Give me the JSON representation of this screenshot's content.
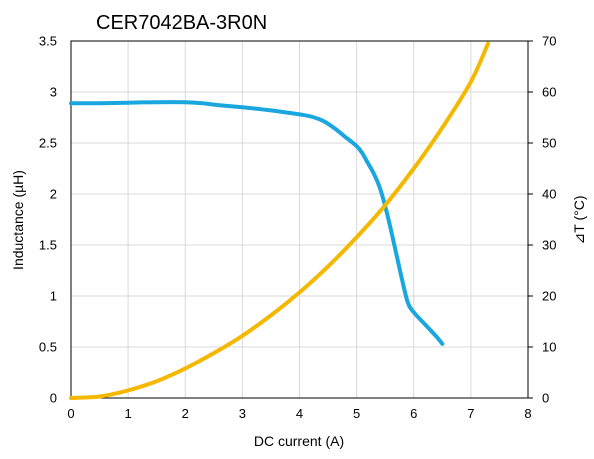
{
  "chart_data": {
    "type": "line",
    "title": "CER7042BA-3R0N",
    "xlabel": "DC current (A)",
    "ylabel_left": "Inductance (µH)",
    "ylabel_right": "⊿T (°C)",
    "xlim": [
      0,
      8
    ],
    "ylim_left": [
      0,
      3.5
    ],
    "ylim_right": [
      0,
      70
    ],
    "grid": true,
    "x_ticks": [
      "0",
      "1",
      "2",
      "3",
      "4",
      "5",
      "6",
      "7",
      "8"
    ],
    "y_left_ticks": [
      "0",
      "0.5",
      "1",
      "1.5",
      "2",
      "2.5",
      "3",
      "3.5"
    ],
    "y_right_ticks": [
      "0",
      "10",
      "20",
      "30",
      "40",
      "50",
      "60",
      "70"
    ],
    "series": [
      {
        "axis": "left",
        "color": "#1aa7e0",
        "x": [
          0,
          0.5,
          1,
          1.5,
          2,
          2.3,
          2.6,
          3,
          3.5,
          4,
          4.2,
          4.4,
          4.6,
          4.8,
          5.0,
          5.1,
          5.2,
          5.3,
          5.4,
          5.5,
          5.6,
          5.7,
          5.8,
          5.9,
          6.0,
          6.2,
          6.4,
          6.5
        ],
        "y": [
          2.89,
          2.89,
          2.895,
          2.9,
          2.9,
          2.89,
          2.87,
          2.85,
          2.82,
          2.78,
          2.76,
          2.72,
          2.65,
          2.56,
          2.47,
          2.4,
          2.3,
          2.2,
          2.07,
          1.88,
          1.65,
          1.4,
          1.15,
          0.93,
          0.84,
          0.72,
          0.6,
          0.53
        ]
      },
      {
        "axis": "right",
        "color": "#f5b800",
        "x": [
          0,
          0.5,
          1,
          1.5,
          2,
          2.5,
          3,
          3.5,
          4,
          4.5,
          5,
          5.5,
          6,
          6.5,
          7,
          7.3
        ],
        "y": [
          0,
          0.3,
          1.5,
          3.3,
          5.8,
          8.8,
          12.2,
          16.2,
          20.7,
          25.8,
          31.5,
          37.8,
          45,
          53,
          62,
          69.5
        ]
      }
    ]
  }
}
